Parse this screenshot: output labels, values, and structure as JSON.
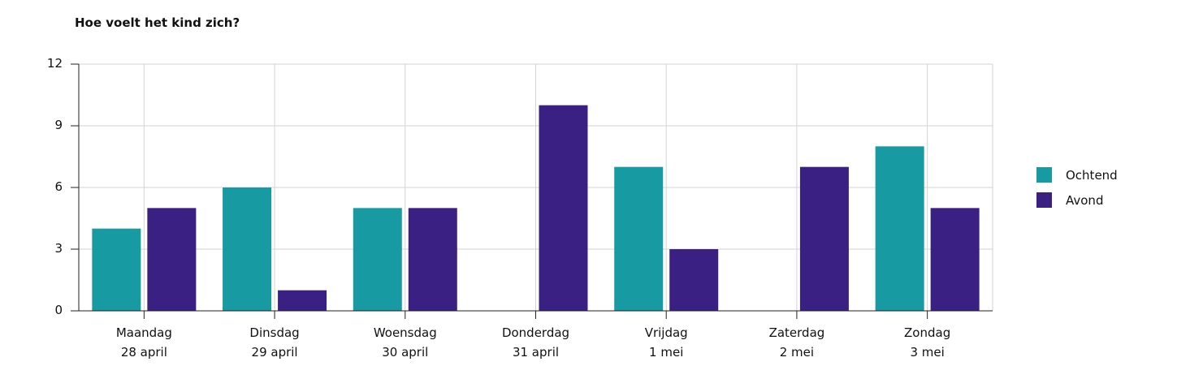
{
  "chart_data": {
    "type": "bar",
    "title": "Hoe voelt het kind zich?",
    "xlabel": "",
    "ylabel": "",
    "categories": [
      [
        "Maandag",
        "28 april"
      ],
      [
        "Dinsdag",
        "29 april"
      ],
      [
        "Woensdag",
        "30 april"
      ],
      [
        "Donderdag",
        "31 april"
      ],
      [
        "Vrijdag",
        "1 mei"
      ],
      [
        "Zaterdag",
        "2 mei"
      ],
      [
        "Zondag",
        "3 mei"
      ]
    ],
    "series": [
      {
        "name": "Ochtend",
        "color": "#179AA1",
        "values": [
          4,
          6,
          5,
          0,
          7,
          0,
          8
        ]
      },
      {
        "name": "Avond",
        "color": "#3A2083",
        "values": [
          5,
          1,
          5,
          10,
          3,
          7,
          5
        ]
      }
    ],
    "ylim": [
      0,
      12
    ],
    "yticks": [
      0,
      3,
      6,
      9,
      12
    ],
    "grid": true,
    "legend_position": "right"
  }
}
